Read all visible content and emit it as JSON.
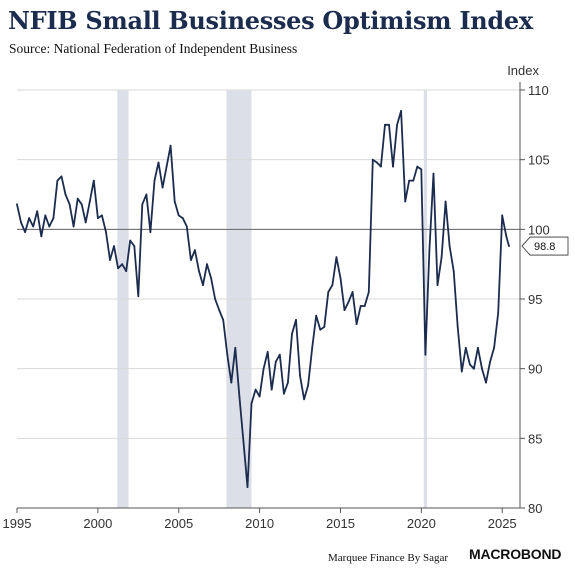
{
  "title": "NFIB Small Businesses Optimism Index",
  "subtitle": "Source: National Federation of Independent Business",
  "footer": {
    "credit": "Marquee Finance By Sagar",
    "brand": "MACROBOND"
  },
  "colors": {
    "line": "#1b2c4f",
    "recession": "#dcdfe7",
    "grid": "#d9d9d9",
    "reference": "#666666"
  },
  "chart_data": {
    "type": "line",
    "title": "NFIB Small Businesses Optimism Index",
    "subtitle": "Source: National Federation of Independent Business",
    "xlabel": "",
    "ylabel": "Index",
    "xlim": [
      1995,
      2026.1
    ],
    "ylim": [
      80,
      110
    ],
    "x_ticks": [
      "1995",
      "2000",
      "2005",
      "2010",
      "2015",
      "2020",
      "2025"
    ],
    "y_ticks": [
      "80",
      "85",
      "90",
      "95",
      "100",
      "105",
      "110"
    ],
    "reference_line": 100,
    "last_value_label": "98.8",
    "grid": true,
    "y_axis_side": "right",
    "shaded_periods": [
      {
        "start": 2001.2,
        "end": 2001.9
      },
      {
        "start": 2007.95,
        "end": 2009.5
      },
      {
        "start": 2020.15,
        "end": 2020.35
      }
    ],
    "series": [
      {
        "x": [
          1995.0,
          1995.25,
          1995.5,
          1995.75,
          1996.0,
          1996.25,
          1996.5,
          1996.75,
          1997.0,
          1997.25,
          1997.5,
          1997.75,
          1998.0,
          1998.25,
          1998.5,
          1998.75,
          1999.0,
          1999.25,
          1999.5,
          1999.75,
          2000.0,
          2000.25,
          2000.5,
          2000.75,
          2001.0,
          2001.25,
          2001.5,
          2001.75,
          2002.0,
          2002.25,
          2002.5,
          2002.75,
          2003.0,
          2003.25,
          2003.5,
          2003.75,
          2004.0,
          2004.25,
          2004.5,
          2004.75,
          2005.0,
          2005.25,
          2005.5,
          2005.75,
          2006.0,
          2006.25,
          2006.5,
          2006.75,
          2007.0,
          2007.25,
          2007.5,
          2007.75,
          2008.0,
          2008.25,
          2008.5,
          2008.75,
          2009.0,
          2009.25,
          2009.5,
          2009.75,
          2010.0,
          2010.25,
          2010.5,
          2010.75,
          2011.0,
          2011.25,
          2011.5,
          2011.75,
          2012.0,
          2012.25,
          2012.5,
          2012.75,
          2013.0,
          2013.25,
          2013.5,
          2013.75,
          2014.0,
          2014.25,
          2014.5,
          2014.75,
          2015.0,
          2015.25,
          2015.5,
          2015.75,
          2016.0,
          2016.25,
          2016.5,
          2016.75,
          2017.0,
          2017.25,
          2017.5,
          2017.75,
          2018.0,
          2018.25,
          2018.5,
          2018.75,
          2019.0,
          2019.25,
          2019.5,
          2019.75,
          2020.0,
          2020.25,
          2020.5,
          2020.75,
          2021.0,
          2021.25,
          2021.5,
          2021.75,
          2022.0,
          2022.25,
          2022.5,
          2022.75,
          2023.0,
          2023.25,
          2023.5,
          2023.75,
          2024.0,
          2024.25,
          2024.5,
          2024.75,
          2025.0,
          2025.25,
          2025.42
        ],
        "values": [
          101.8,
          100.5,
          99.8,
          100.8,
          100.2,
          101.3,
          99.5,
          101.0,
          100.2,
          100.8,
          103.5,
          103.8,
          102.5,
          101.8,
          100.2,
          102.2,
          101.8,
          100.5,
          102.0,
          103.5,
          100.8,
          101.0,
          99.8,
          97.8,
          98.8,
          97.2,
          97.5,
          97.0,
          99.2,
          98.8,
          95.2,
          101.8,
          102.5,
          99.8,
          103.5,
          104.8,
          103.0,
          104.5,
          106.0,
          102.0,
          101.0,
          100.8,
          100.2,
          97.8,
          98.5,
          97.0,
          96.0,
          97.5,
          96.5,
          95.0,
          94.2,
          93.5,
          91.0,
          89.0,
          91.5,
          88.0,
          84.8,
          81.5,
          87.5,
          88.5,
          88.0,
          90.0,
          91.2,
          88.5,
          90.5,
          91.0,
          88.2,
          89.0,
          92.5,
          93.5,
          89.5,
          87.8,
          88.8,
          91.5,
          93.8,
          92.8,
          93.0,
          95.5,
          96.0,
          98.0,
          96.5,
          94.2,
          94.8,
          95.5,
          93.2,
          94.5,
          94.5,
          95.5,
          105.0,
          104.8,
          104.5,
          107.5,
          107.5,
          104.5,
          107.5,
          108.5,
          102.0,
          103.5,
          103.5,
          104.5,
          104.3,
          91.0,
          98.5,
          104.0,
          96.0,
          98.0,
          102.0,
          98.8,
          97.0,
          93.0,
          89.8,
          91.5,
          90.3,
          90.0,
          91.5,
          90.0,
          89.0,
          90.5,
          91.5,
          94.0,
          101.0,
          99.5,
          98.8
        ]
      }
    ]
  }
}
